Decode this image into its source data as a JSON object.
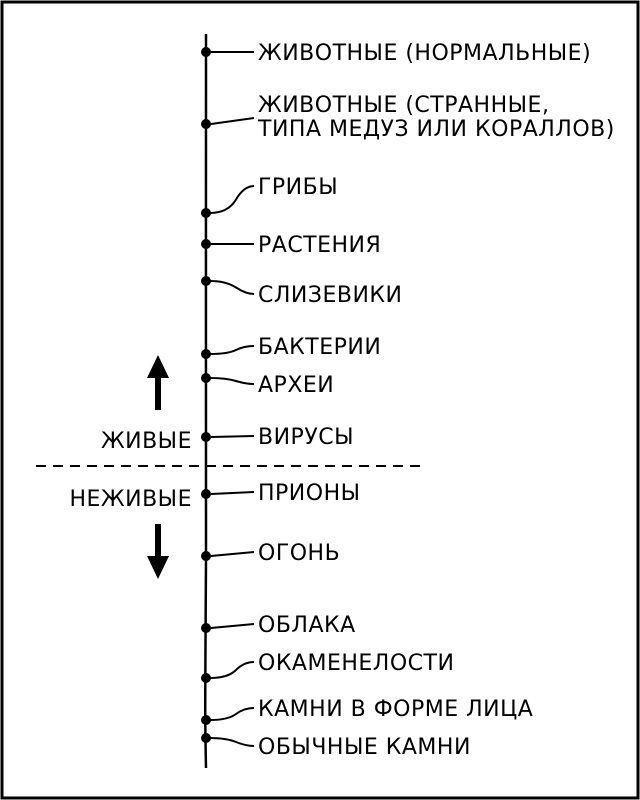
{
  "items": [
    {
      "lines": [
        "ЖИВОТНЫЕ (НОРМАЛЬНЫЕ)"
      ]
    },
    {
      "lines": [
        "ЖИВОТНЫЕ (СТРАННЫЕ,",
        "ТИПА МЕДУЗ ИЛИ КОРАЛЛОВ)"
      ]
    },
    {
      "lines": [
        "ГРИБЫ"
      ]
    },
    {
      "lines": [
        "РАСТЕНИЯ"
      ]
    },
    {
      "lines": [
        "СЛИЗЕВИКИ"
      ]
    },
    {
      "lines": [
        "БАКТЕРИИ"
      ]
    },
    {
      "lines": [
        "АРХЕИ"
      ]
    },
    {
      "lines": [
        "ВИРУСЫ"
      ]
    },
    {
      "lines": [
        "ПРИОНЫ"
      ]
    },
    {
      "lines": [
        "ОГОНЬ"
      ]
    },
    {
      "lines": [
        "ОБЛАКА"
      ]
    },
    {
      "lines": [
        "ОКАМЕНЕЛОСТИ"
      ]
    },
    {
      "lines": [
        "КАМНИ В ФОРМЕ ЛИЦА"
      ]
    },
    {
      "lines": [
        "ОБЫЧНЫЕ КАМНИ"
      ]
    }
  ],
  "divider": {
    "above_label": "ЖИВЫЕ",
    "below_label": "НЕЖИВЫЕ"
  },
  "colors": {
    "ink": "#000000",
    "background": "#ffffff"
  }
}
